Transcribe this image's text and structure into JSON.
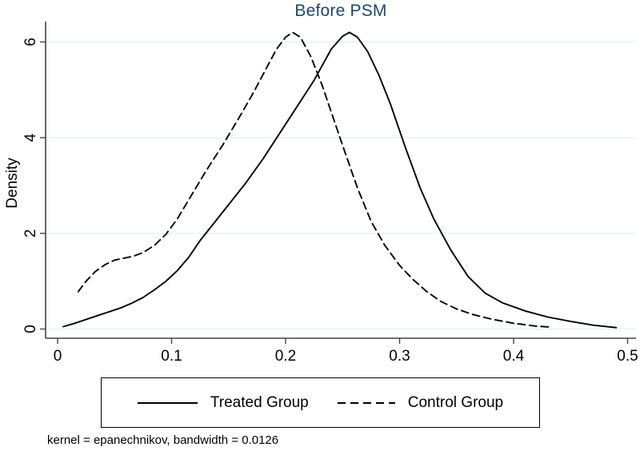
{
  "title": "Before PSM",
  "footnote": "kernel = epanechnikov, bandwidth = 0.0126",
  "legend": {
    "items": [
      {
        "label": "Treated Group",
        "style": "solid"
      },
      {
        "label": "Control Group",
        "style": "dashed"
      }
    ]
  },
  "colors": {
    "title": "#1a476f",
    "curve": "#000000",
    "grid": "#e8f0f2",
    "axis": "#444444",
    "text": "#000000"
  },
  "chart_data": {
    "type": "line",
    "title": "Before PSM",
    "xlabel": "",
    "ylabel": "Density",
    "xlim": [
      0,
      0.5
    ],
    "ylim": [
      0,
      6.43
    ],
    "xticks": [
      0,
      0.1,
      0.2,
      0.3,
      0.4,
      0.5
    ],
    "xtick_labels": [
      "0",
      "0.1",
      "0.2",
      "0.3",
      "0.4",
      "0.5"
    ],
    "yticks": [
      0,
      2,
      4,
      6
    ],
    "ytick_labels": [
      "0",
      "2",
      "4",
      "6"
    ],
    "grid": "horizontal",
    "legend_position": "bottom",
    "note": "kernel = epanechnikov, bandwidth = 0.0126",
    "series": [
      {
        "name": "Treated Group",
        "line": "solid",
        "x": [
          0.005,
          0.015,
          0.025,
          0.035,
          0.045,
          0.055,
          0.065,
          0.075,
          0.085,
          0.095,
          0.105,
          0.115,
          0.125,
          0.135,
          0.15,
          0.165,
          0.18,
          0.195,
          0.21,
          0.225,
          0.24,
          0.25,
          0.256,
          0.263,
          0.272,
          0.282,
          0.292,
          0.305,
          0.318,
          0.33,
          0.345,
          0.36,
          0.375,
          0.39,
          0.41,
          0.43,
          0.45,
          0.47,
          0.49
        ],
        "y": [
          0.05,
          0.12,
          0.2,
          0.28,
          0.36,
          0.44,
          0.54,
          0.66,
          0.82,
          1.0,
          1.22,
          1.5,
          1.85,
          2.15,
          2.6,
          3.05,
          3.55,
          4.1,
          4.65,
          5.2,
          5.85,
          6.12,
          6.2,
          6.1,
          5.8,
          5.3,
          4.7,
          3.8,
          2.95,
          2.3,
          1.65,
          1.1,
          0.75,
          0.55,
          0.38,
          0.25,
          0.16,
          0.08,
          0.03
        ]
      },
      {
        "name": "Control Group",
        "line": "dashed",
        "x": [
          0.018,
          0.025,
          0.033,
          0.042,
          0.05,
          0.058,
          0.066,
          0.075,
          0.085,
          0.095,
          0.105,
          0.115,
          0.13,
          0.145,
          0.16,
          0.172,
          0.182,
          0.192,
          0.2,
          0.206,
          0.213,
          0.222,
          0.232,
          0.242,
          0.252,
          0.263,
          0.275,
          0.287,
          0.3,
          0.312,
          0.324,
          0.336,
          0.35,
          0.365,
          0.38,
          0.4,
          0.42,
          0.434
        ],
        "y": [
          0.78,
          1.0,
          1.2,
          1.35,
          1.44,
          1.48,
          1.52,
          1.6,
          1.75,
          1.98,
          2.3,
          2.7,
          3.3,
          3.85,
          4.45,
          4.95,
          5.4,
          5.85,
          6.1,
          6.2,
          6.1,
          5.7,
          5.1,
          4.4,
          3.7,
          2.95,
          2.25,
          1.75,
          1.33,
          1.03,
          0.78,
          0.58,
          0.42,
          0.3,
          0.21,
          0.12,
          0.06,
          0.04
        ]
      }
    ]
  }
}
